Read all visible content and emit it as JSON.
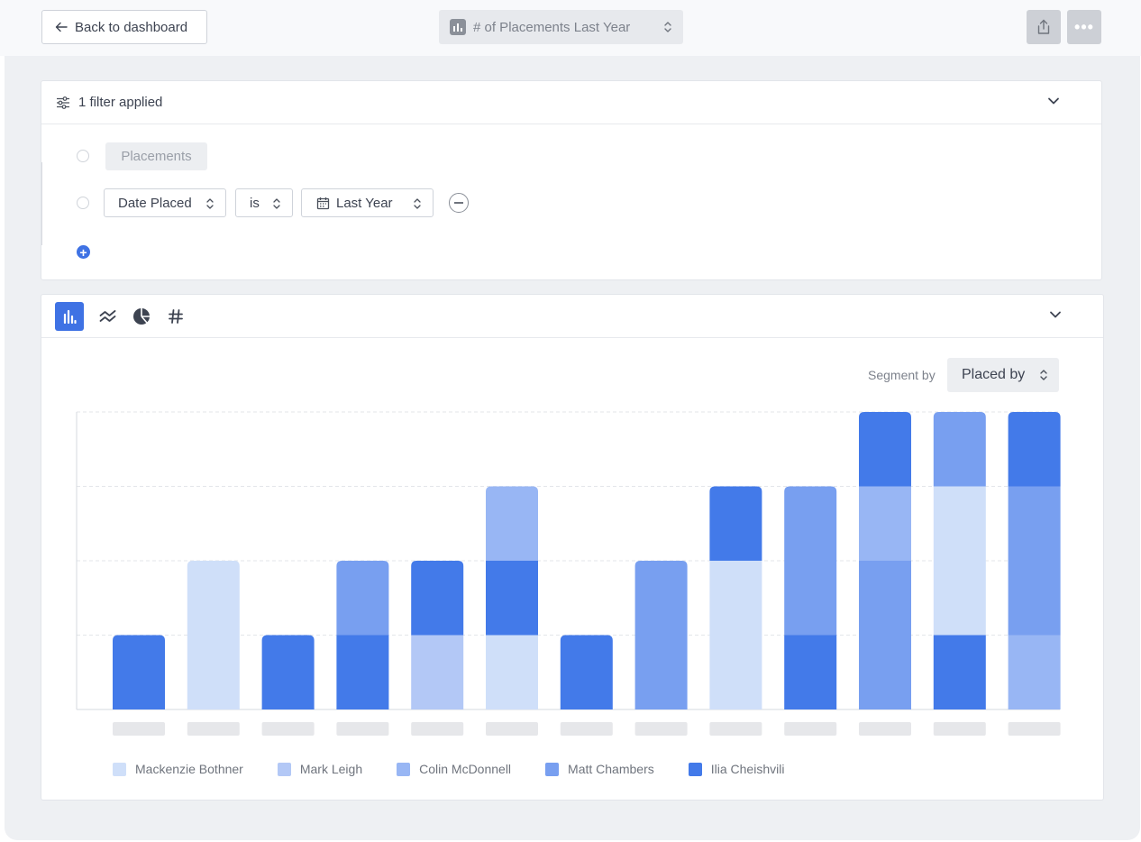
{
  "topbar": {
    "back_label": "Back to dashboard",
    "report_title": "# of Placements Last Year",
    "icons": [
      "arrow-left-icon",
      "bar-chart-icon",
      "updown-caret-icon",
      "share-icon",
      "more-icon"
    ]
  },
  "filters": {
    "summary": "1 filter applied",
    "entity": "Placements",
    "rule": {
      "field": "Date Placed",
      "operator": "is",
      "value": "Last Year"
    }
  },
  "chart_panel": {
    "chart_types": [
      "bar-chart-icon",
      "line-chart-icon",
      "pie-chart-icon",
      "number-icon"
    ],
    "active_type": "bar",
    "segment_label": "Segment by",
    "segment_value": "Placed by"
  },
  "colors": {
    "accent": "#3f72e4",
    "series": [
      "#cfdff9",
      "#b3c8f6",
      "#98b6f4",
      "#789ff0",
      "#437ae9"
    ]
  },
  "chart_data": {
    "type": "bar",
    "stacked": true,
    "categories": [
      "",
      "",
      "",
      "",
      "",
      "",
      "",
      "",
      "",
      "",
      "",
      "",
      ""
    ],
    "series": [
      {
        "name": "Mackenzie Bothner",
        "values": [
          0,
          2,
          0,
          0,
          0,
          1,
          0,
          0,
          2,
          0,
          0,
          2,
          0
        ]
      },
      {
        "name": "Mark Leigh",
        "values": [
          0,
          0,
          0,
          0,
          1,
          0,
          0,
          0,
          0,
          0,
          0,
          0,
          0
        ]
      },
      {
        "name": "Colin McDonnell",
        "values": [
          0,
          0,
          0,
          0,
          0,
          1,
          0,
          0,
          0,
          0,
          1,
          0,
          1
        ]
      },
      {
        "name": "Matt Chambers",
        "values": [
          0,
          0,
          0,
          1,
          0,
          0,
          0,
          2,
          0,
          2,
          2,
          1,
          2
        ]
      },
      {
        "name": "Ilia Cheishvili",
        "values": [
          1,
          0,
          1,
          1,
          1,
          1,
          1,
          0,
          1,
          1,
          1,
          1,
          1
        ]
      }
    ],
    "stack_order": [
      [
        4
      ],
      [
        0
      ],
      [
        4
      ],
      [
        4,
        3
      ],
      [
        1,
        4
      ],
      [
        0,
        4,
        2
      ],
      [
        4
      ],
      [
        3
      ],
      [
        0,
        4
      ],
      [
        4,
        3
      ],
      [
        3,
        2,
        4
      ],
      [
        4,
        0,
        3
      ],
      [
        2,
        3,
        4
      ]
    ],
    "ylim": [
      0,
      4
    ],
    "grid": true,
    "legend_position": "bottom-left"
  }
}
